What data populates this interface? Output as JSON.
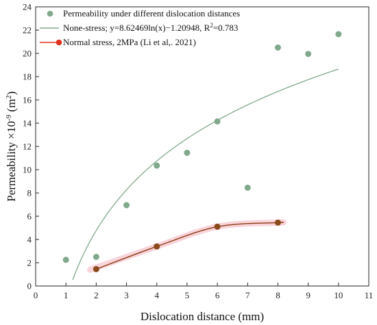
{
  "chart_data": {
    "type": "scatter",
    "xlabel": "Dislocation distance (mm)",
    "ylabel": {
      "prefix": "Permeability ×10",
      "exp": "-9",
      "mid": " (m",
      "exp2": "2",
      "suffix": ")"
    },
    "xlim": [
      0,
      11
    ],
    "ylim": [
      0,
      24
    ],
    "xticks": [
      0,
      1,
      2,
      3,
      4,
      5,
      6,
      7,
      8,
      9,
      10,
      11
    ],
    "yticks": [
      0,
      2,
      4,
      6,
      8,
      10,
      12,
      14,
      16,
      18,
      20,
      22,
      24
    ],
    "grid": false,
    "legend_position": "top-left",
    "series": [
      {
        "name": "Permeability under different dislocation distances",
        "kind": "scatter",
        "color": "#7fa98a",
        "x": [
          1,
          2,
          3,
          4,
          5,
          6,
          7,
          8,
          9,
          10
        ],
        "y": [
          2.25,
          2.5,
          6.95,
          10.35,
          11.45,
          14.15,
          8.45,
          20.5,
          19.95,
          21.65
        ]
      },
      {
        "name": "None-stress; y=8.62469ln(x)−1.20948, R",
        "name_sup": "2",
        "name_tail": "=0.783",
        "kind": "fit-log",
        "color": "#7fa98a",
        "a": 8.62469,
        "b": -1.20948,
        "x_range": [
          1.15,
          10
        ]
      },
      {
        "name": "Normal stress, 2MPa (Li et al,. 2021)",
        "kind": "line-markers",
        "color": "#8b3a0f",
        "marker_color": "#8b4a1a",
        "legend_marker_color": "#e0321e",
        "band_color": "#f6c6cf",
        "x": [
          2,
          4,
          6,
          8
        ],
        "y": [
          1.45,
          3.4,
          5.1,
          5.45
        ]
      }
    ]
  }
}
